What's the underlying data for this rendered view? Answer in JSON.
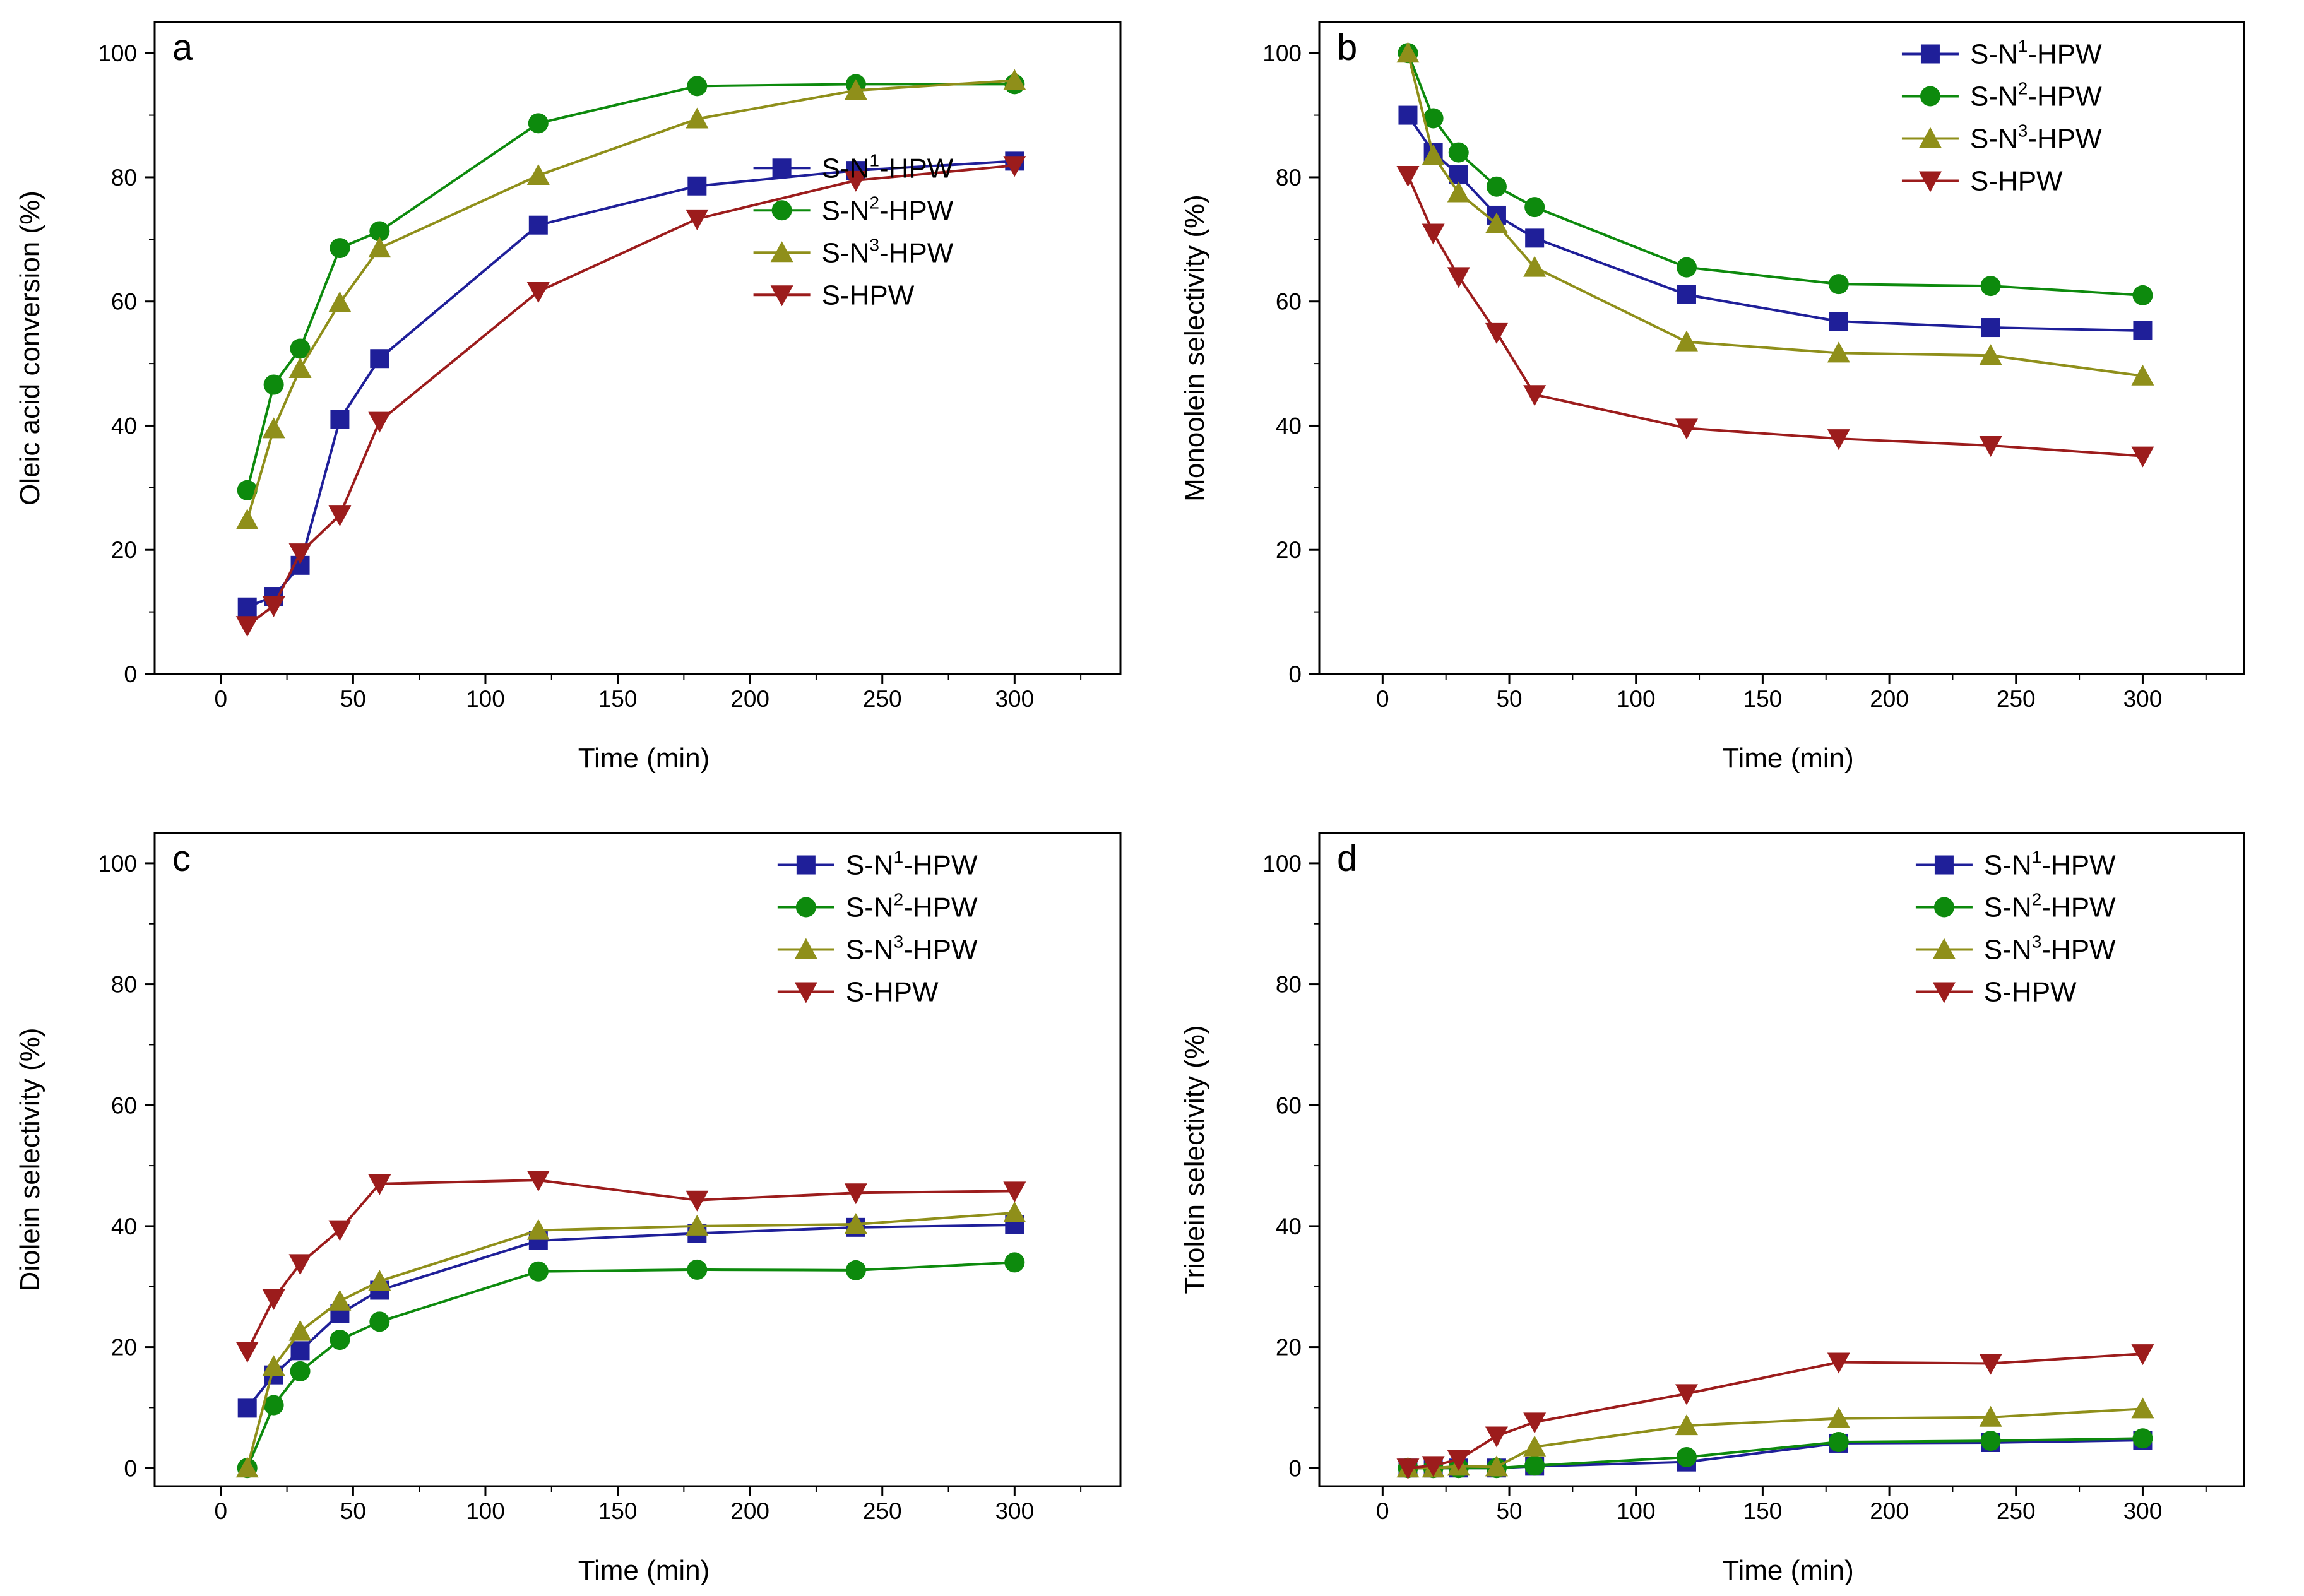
{
  "figure": {
    "colors": {
      "S-N1-HPW": "#1f1f99",
      "S-N2-HPW": "#0d8a0d",
      "S-N3-HPW": "#8f8f1a",
      "S-HPW": "#9c1c1c"
    },
    "markers": {
      "S-N1-HPW": "square",
      "S-N2-HPW": "circle",
      "S-N3-HPW": "triangle-up",
      "S-HPW": "triangle-down"
    }
  },
  "chart_data": [
    {
      "type": "line",
      "panel": "a",
      "title": "",
      "xlabel": "Time (min)",
      "ylabel": "Oleic acid conversion (%)",
      "xlim": [
        -25,
        340
      ],
      "ylim": [
        0,
        105
      ],
      "xticks": [
        0,
        50,
        100,
        150,
        200,
        250,
        300
      ],
      "yticks": [
        0,
        20,
        40,
        60,
        80,
        100
      ],
      "legend_position": "center-right",
      "x": [
        10,
        20,
        30,
        45,
        60,
        120,
        180,
        240,
        300
      ],
      "series": [
        {
          "name": "S-N1-HPW",
          "label_base": "S-N",
          "label_sup": "1",
          "label_suffix": "-HPW",
          "values": [
            10.8,
            12.5,
            17.5,
            41.0,
            50.8,
            72.3,
            78.6,
            81.1,
            82.6
          ]
        },
        {
          "name": "S-N2-HPW",
          "label_base": "S-N",
          "label_sup": "2",
          "label_suffix": "-HPW",
          "values": [
            29.6,
            46.6,
            52.4,
            68.6,
            71.3,
            88.7,
            94.7,
            95.0,
            95.0
          ]
        },
        {
          "name": "S-N3-HPW",
          "label_base": "S-N",
          "label_sup": "3",
          "label_suffix": "-HPW",
          "values": [
            24.8,
            39.5,
            49.2,
            59.8,
            68.6,
            80.3,
            89.4,
            94.0,
            95.6
          ]
        },
        {
          "name": "S-HPW",
          "label_base": "S-HPW",
          "label_sup": "",
          "label_suffix": "",
          "values": [
            7.8,
            11.0,
            19.5,
            25.6,
            40.7,
            61.6,
            73.3,
            79.5,
            81.9
          ]
        }
      ]
    },
    {
      "type": "line",
      "panel": "b",
      "title": "",
      "xlabel": "Time (min)",
      "ylabel": "Monoolein selectivity (%)",
      "xlim": [
        -25,
        340
      ],
      "ylim": [
        0,
        105
      ],
      "xticks": [
        0,
        50,
        100,
        150,
        200,
        250,
        300
      ],
      "yticks": [
        0,
        20,
        40,
        60,
        80,
        100
      ],
      "legend_position": "top-right",
      "x": [
        10,
        20,
        30,
        45,
        60,
        120,
        180,
        240,
        300
      ],
      "series": [
        {
          "name": "S-N1-HPW",
          "label_base": "S-N",
          "label_sup": "1",
          "label_suffix": "-HPW",
          "values": [
            90.0,
            84.0,
            80.4,
            73.9,
            70.2,
            61.1,
            56.8,
            55.8,
            55.3
          ]
        },
        {
          "name": "S-N2-HPW",
          "label_base": "S-N",
          "label_sup": "2",
          "label_suffix": "-HPW",
          "values": [
            100.0,
            89.5,
            84.0,
            78.5,
            75.2,
            65.5,
            62.8,
            62.5,
            61.0
          ]
        },
        {
          "name": "S-N3-HPW",
          "label_base": "S-N",
          "label_sup": "3",
          "label_suffix": "-HPW",
          "values": [
            100.0,
            83.5,
            77.5,
            72.5,
            65.5,
            53.5,
            51.7,
            51.3,
            48.0
          ]
        },
        {
          "name": "S-HPW",
          "label_base": "S-HPW",
          "label_sup": "",
          "label_suffix": "",
          "values": [
            80.3,
            71.0,
            64.0,
            55.0,
            45.0,
            39.6,
            37.9,
            36.8,
            35.1
          ]
        }
      ]
    },
    {
      "type": "line",
      "panel": "c",
      "title": "",
      "xlabel": "Time (min)",
      "ylabel": "Diolein selectivity (%)",
      "xlim": [
        -25,
        340
      ],
      "ylim": [
        -3,
        105
      ],
      "xticks": [
        0,
        50,
        100,
        150,
        200,
        250,
        300
      ],
      "yticks": [
        0,
        20,
        40,
        60,
        80,
        100
      ],
      "legend_position": "top-right",
      "x": [
        10,
        20,
        30,
        45,
        60,
        120,
        180,
        240,
        300
      ],
      "series": [
        {
          "name": "S-N1-HPW",
          "label_base": "S-N",
          "label_sup": "1",
          "label_suffix": "-HPW",
          "values": [
            9.9,
            15.4,
            19.4,
            25.5,
            29.4,
            37.6,
            38.8,
            39.8,
            40.2
          ]
        },
        {
          "name": "S-N2-HPW",
          "label_base": "S-N",
          "label_sup": "2",
          "label_suffix": "-HPW",
          "values": [
            0.0,
            10.4,
            16.0,
            21.2,
            24.2,
            32.5,
            32.8,
            32.7,
            34.0
          ]
        },
        {
          "name": "S-N3-HPW",
          "label_base": "S-N",
          "label_sup": "3",
          "label_suffix": "-HPW",
          "values": [
            0.0,
            16.8,
            22.6,
            27.6,
            30.9,
            39.3,
            40.0,
            40.3,
            42.2
          ]
        },
        {
          "name": "S-HPW",
          "label_base": "S-HPW",
          "label_sup": "",
          "label_suffix": "",
          "values": [
            19.3,
            28.0,
            33.8,
            39.4,
            47.0,
            47.6,
            44.3,
            45.5,
            45.8
          ]
        }
      ]
    },
    {
      "type": "line",
      "panel": "d",
      "title": "",
      "xlabel": "Time (min)",
      "ylabel": "Triolein selectivity (%)",
      "xlim": [
        -25,
        340
      ],
      "ylim": [
        -3,
        105
      ],
      "xticks": [
        0,
        50,
        100,
        150,
        200,
        250,
        300
      ],
      "yticks": [
        0,
        20,
        40,
        60,
        80,
        100
      ],
      "legend_position": "top-right",
      "x": [
        10,
        20,
        30,
        45,
        60,
        120,
        180,
        240,
        300
      ],
      "series": [
        {
          "name": "S-N1-HPW",
          "label_base": "S-N",
          "label_sup": "1",
          "label_suffix": "-HPW",
          "values": [
            0.0,
            0.0,
            0.0,
            0.0,
            0.3,
            1.0,
            4.1,
            4.2,
            4.6
          ]
        },
        {
          "name": "S-N2-HPW",
          "label_base": "S-N",
          "label_sup": "2",
          "label_suffix": "-HPW",
          "values": [
            0.0,
            0.0,
            0.0,
            0.0,
            0.4,
            1.8,
            4.3,
            4.5,
            4.9
          ]
        },
        {
          "name": "S-N3-HPW",
          "label_base": "S-N",
          "label_sup": "3",
          "label_suffix": "-HPW",
          "values": [
            0.0,
            0.0,
            0.3,
            0.2,
            3.5,
            7.0,
            8.2,
            8.4,
            9.8
          ]
        },
        {
          "name": "S-HPW",
          "label_base": "S-HPW",
          "label_sup": "",
          "label_suffix": "",
          "values": [
            0.0,
            0.4,
            1.4,
            5.3,
            7.6,
            12.3,
            17.5,
            17.3,
            18.9
          ]
        }
      ]
    }
  ]
}
